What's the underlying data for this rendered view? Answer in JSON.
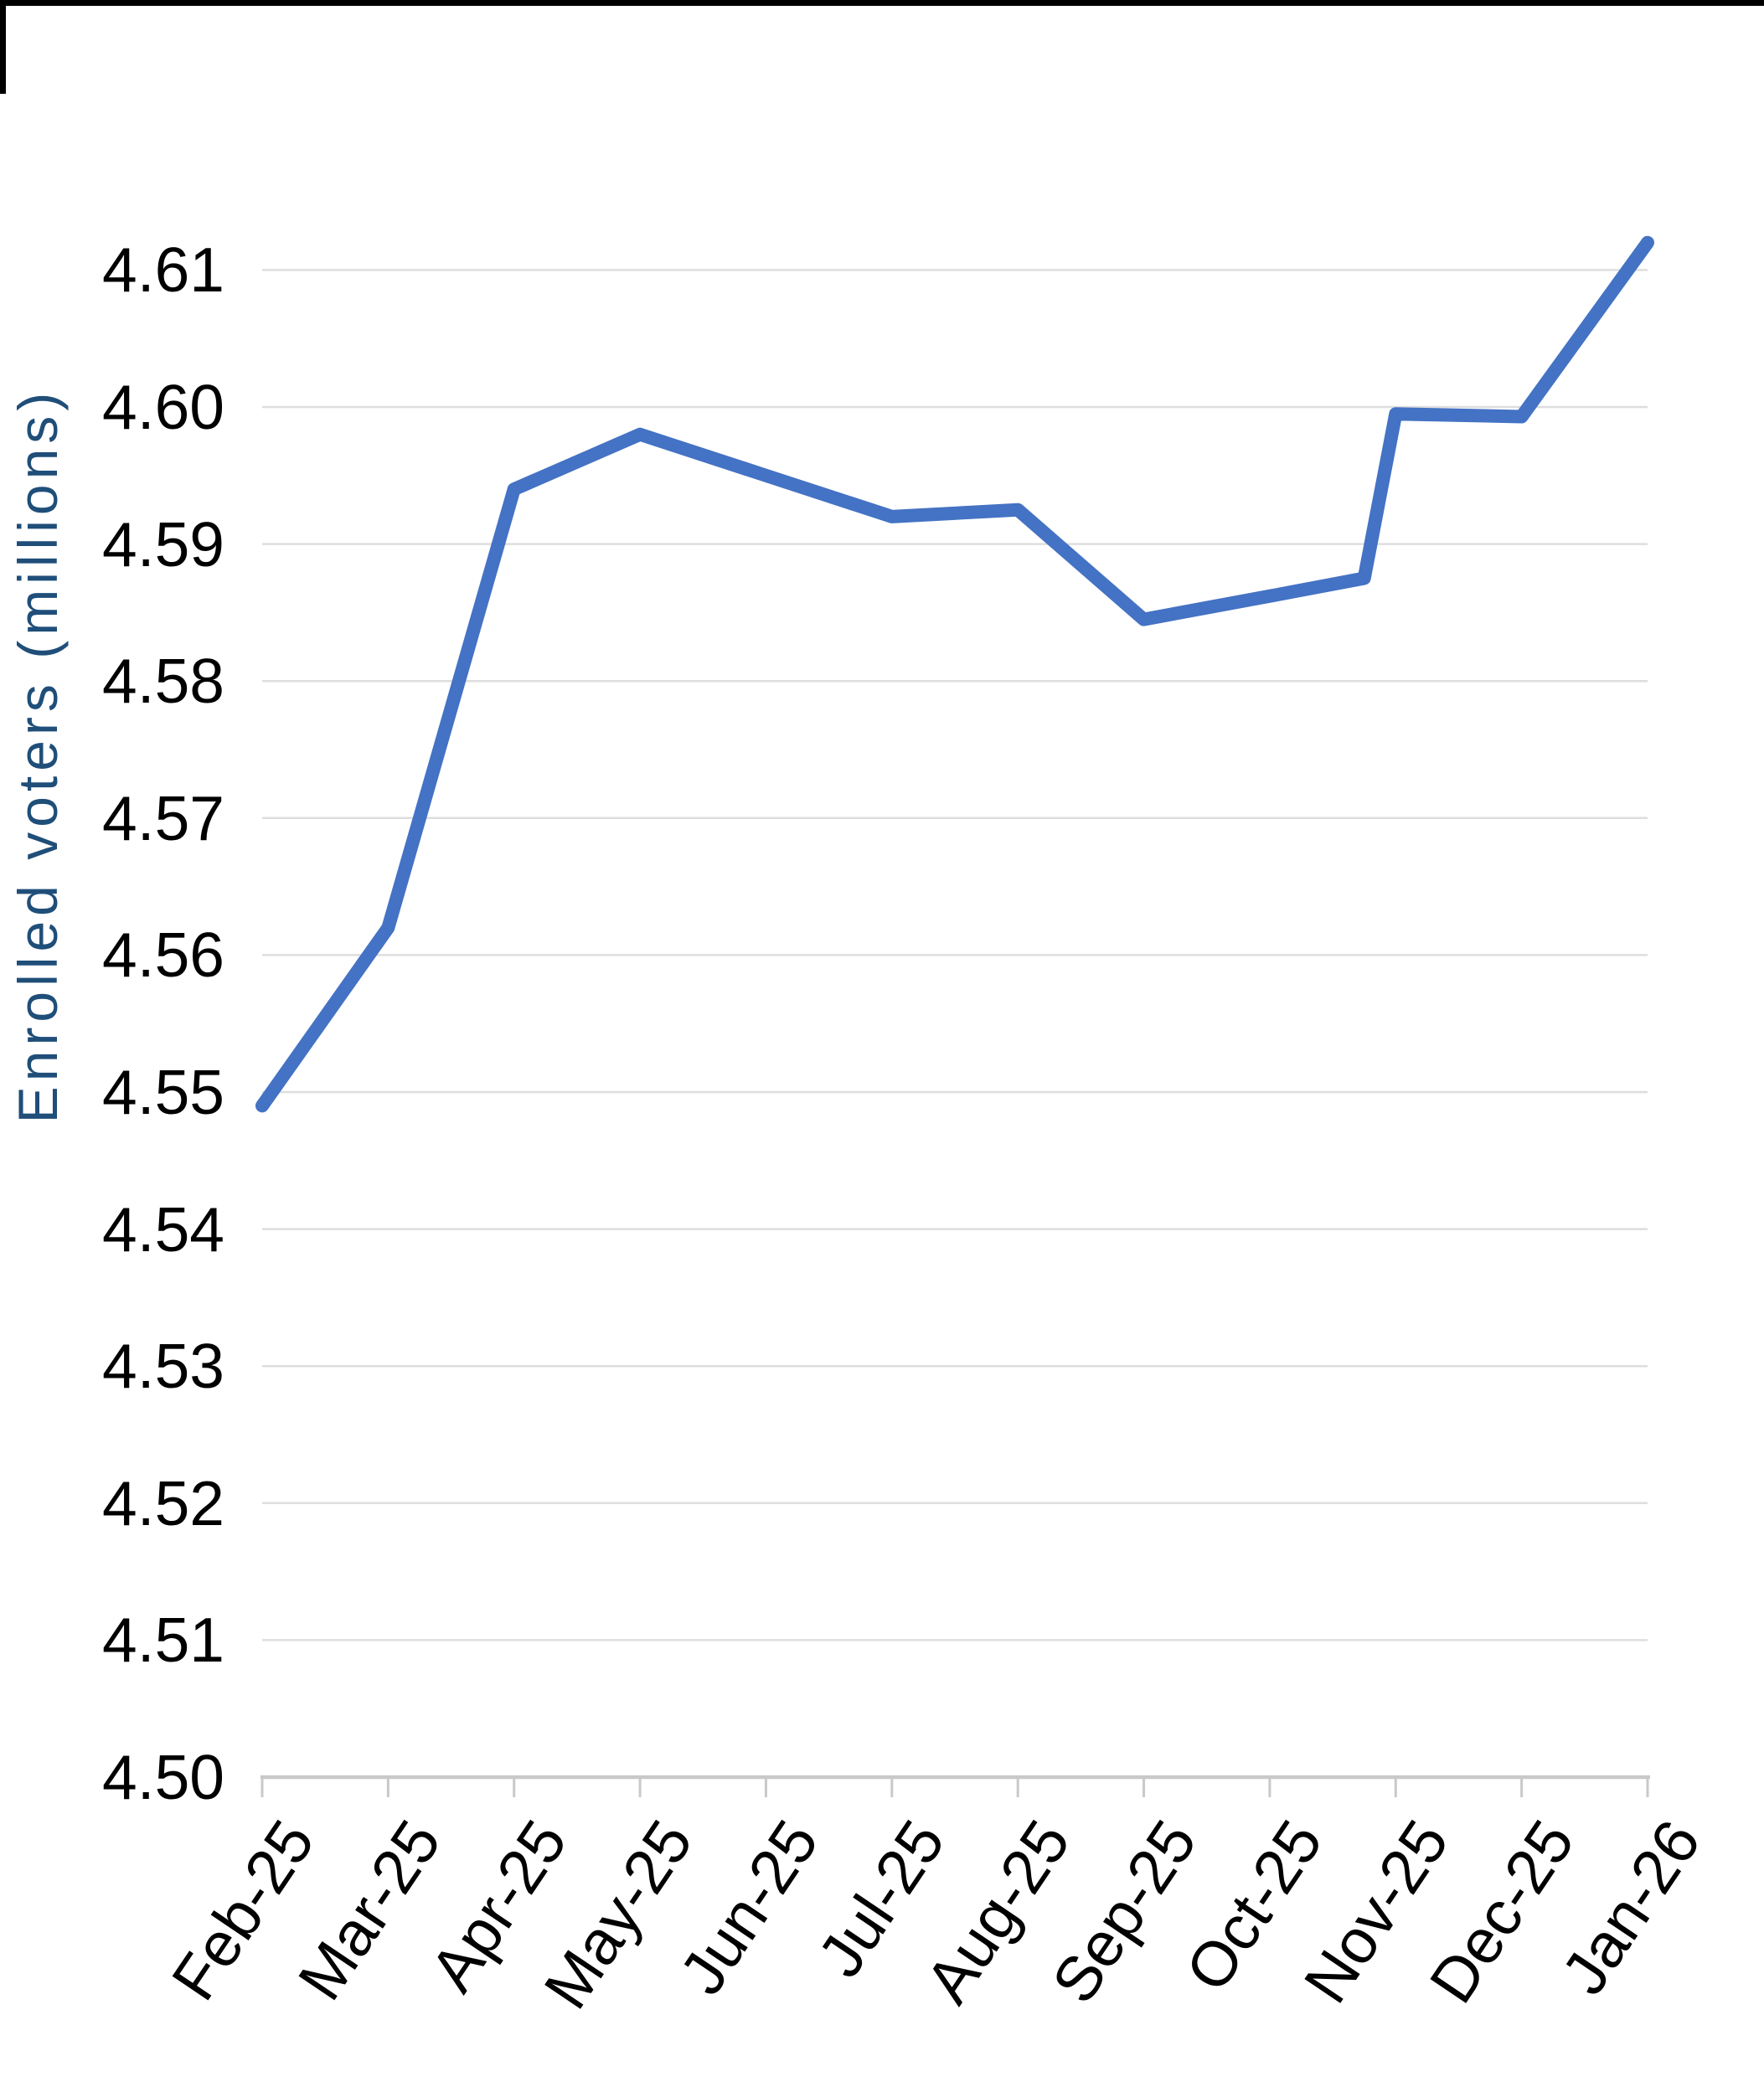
{
  "page": {
    "background": "#FFFFFF",
    "frame_color": "#000000"
  },
  "y_axis": {
    "title": "Enrolled voters (millions)",
    "title_color": "#1F4E79",
    "tick_labels": [
      "4.61",
      "4.60",
      "4.59",
      "4.58",
      "4.57",
      "4.56",
      "4.55",
      "4.54",
      "4.53",
      "4.52",
      "4.51",
      "4.50"
    ],
    "tick_label_color": "#000000"
  },
  "x_axis": {
    "tick_labels": [
      "Feb-25",
      "Mar-25",
      "Apr-25",
      "May-25",
      "Jun-25",
      "Jul-25",
      "Aug-25",
      "Sep-25",
      "Oct-25",
      "Nov-25",
      "Dec-25",
      "Jan-26"
    ],
    "tick_label_color": "#000000",
    "label_rotation_deg": -56
  },
  "chart_data": {
    "type": "line",
    "title": "",
    "xlabel": "",
    "ylabel": "Enrolled voters (millions)",
    "categories": [
      "Feb-25",
      "Mar-25",
      "Apr-25",
      "May-25",
      "Jun-25",
      "Jul-25",
      "Aug-25",
      "Sep-25",
      "Oct-25",
      "Nov-25",
      "Dec-25",
      "Jan-26"
    ],
    "values": [
      4.549,
      4.562,
      4.594,
      4.598,
      4.595,
      4.592,
      4.5925,
      4.5845,
      4.586,
      4.5995,
      4.5993,
      4.612
    ],
    "polyline_points": [
      [
        0,
        4.549
      ],
      [
        1,
        4.562
      ],
      [
        2,
        4.594
      ],
      [
        3,
        4.598
      ],
      [
        4,
        4.595
      ],
      [
        5,
        4.592
      ],
      [
        6,
        4.5925
      ],
      [
        7,
        4.5845
      ],
      [
        8,
        4.5862
      ],
      [
        8.75,
        4.5875
      ],
      [
        9,
        4.5995
      ],
      [
        10,
        4.5993
      ],
      [
        11,
        4.612
      ]
    ],
    "ylim": [
      4.5,
      4.61
    ],
    "ytick_step": 0.01,
    "grid": "horizontal-only",
    "legend": "none",
    "line_color": "#4472C4",
    "gridline_color": "#DEDEDE",
    "axis_line_color": "#C9C9C9"
  }
}
